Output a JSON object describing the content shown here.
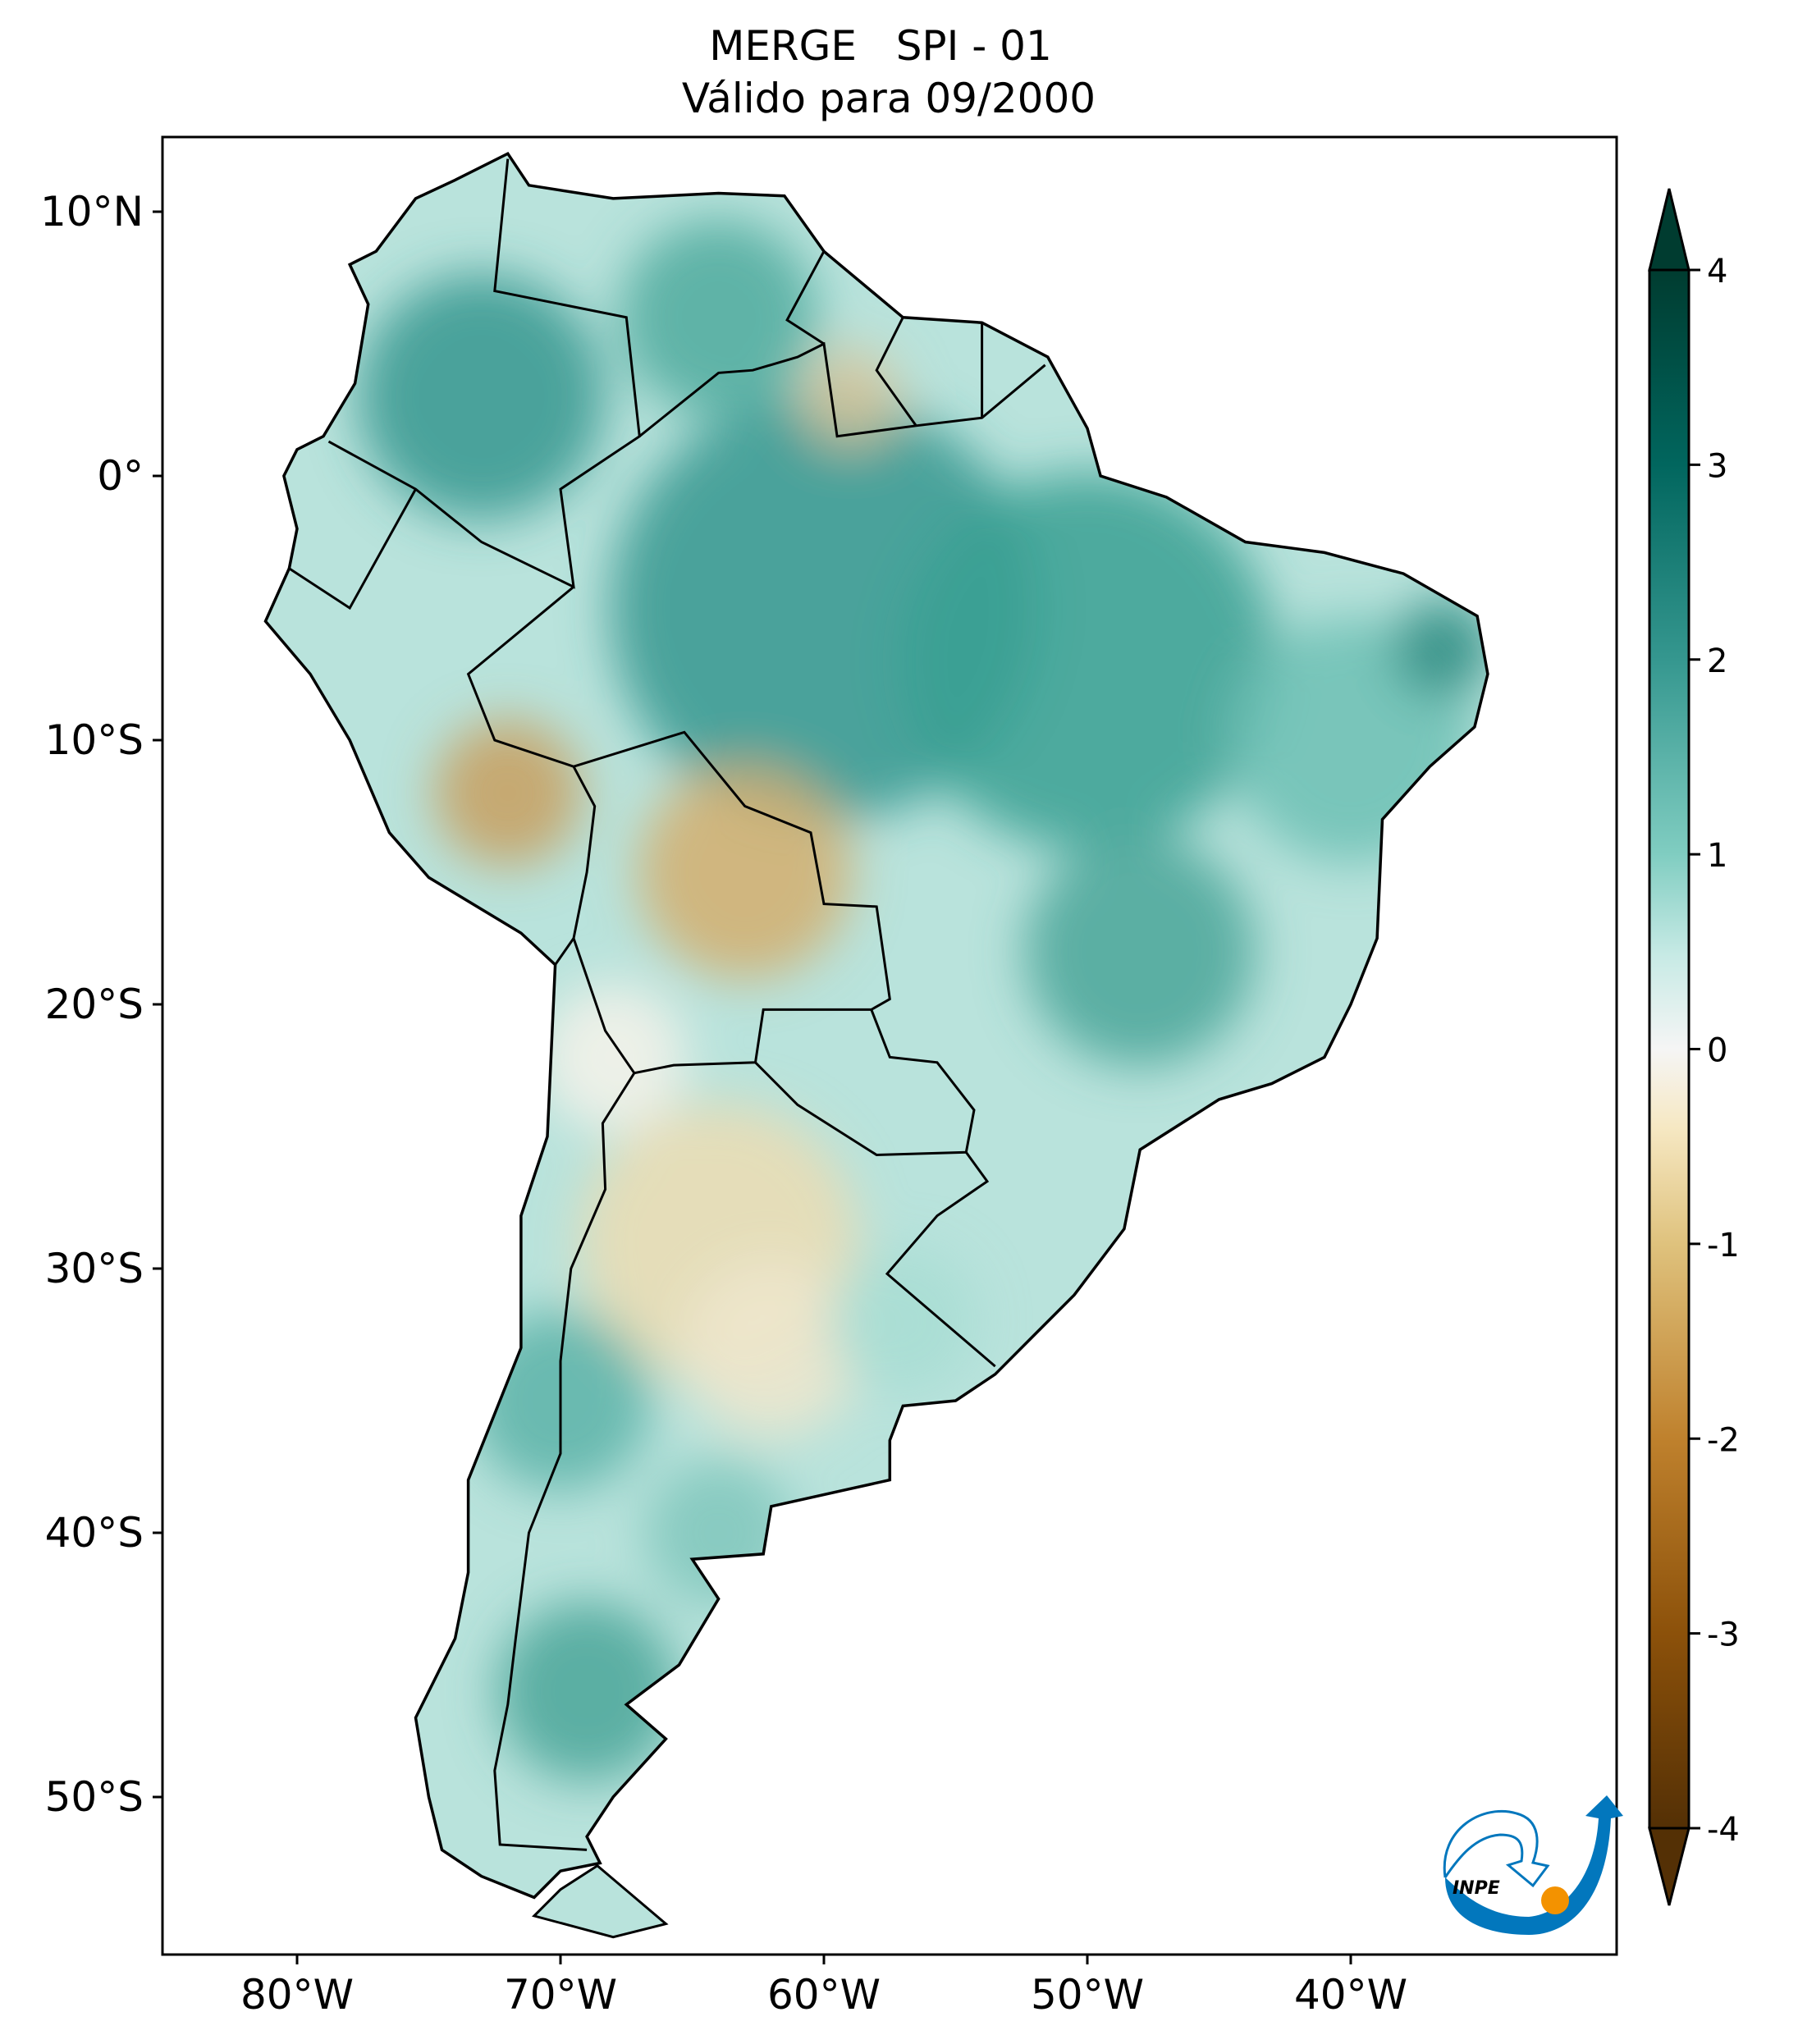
{
  "chart_data": {
    "type": "heatmap",
    "title": "MERGE   SPI - 01",
    "subtitle": "Válido para 09/2000",
    "region": "South America",
    "lon_range": [
      -85,
      -30
    ],
    "lat_range": [
      -56,
      13
    ],
    "x_ticks": [
      {
        "value": -80,
        "label": "80°W"
      },
      {
        "value": -70,
        "label": "70°W"
      },
      {
        "value": -60,
        "label": "60°W"
      },
      {
        "value": -50,
        "label": "50°W"
      },
      {
        "value": -40,
        "label": "40°W"
      }
    ],
    "y_ticks": [
      {
        "value": 10,
        "label": "10°N"
      },
      {
        "value": 0,
        "label": "0°"
      },
      {
        "value": -10,
        "label": "10°S"
      },
      {
        "value": -20,
        "label": "20°S"
      },
      {
        "value": -30,
        "label": "30°S"
      },
      {
        "value": -40,
        "label": "40°S"
      },
      {
        "value": -50,
        "label": "50°S"
      }
    ],
    "colorbar": {
      "range": [
        -4,
        4
      ],
      "extend": "both",
      "ticks": [
        {
          "value": 4,
          "label": "4"
        },
        {
          "value": 3,
          "label": "3"
        },
        {
          "value": 2,
          "label": "2"
        },
        {
          "value": 1,
          "label": "1"
        },
        {
          "value": 0,
          "label": "0"
        },
        {
          "value": -1,
          "label": "-1"
        },
        {
          "value": -2,
          "label": "-2"
        },
        {
          "value": -3,
          "label": "-3"
        },
        {
          "value": -4,
          "label": "-4"
        }
      ],
      "colors": [
        "#543005",
        "#8c510a",
        "#bf812d",
        "#dfc27d",
        "#f6e8c3",
        "#f5f5f5",
        "#c7eae5",
        "#80cdc1",
        "#35978f",
        "#01665e",
        "#003c30"
      ]
    }
  },
  "logo": {
    "text": "INPE",
    "blue": "#0277bd",
    "orange": "#f39200"
  }
}
